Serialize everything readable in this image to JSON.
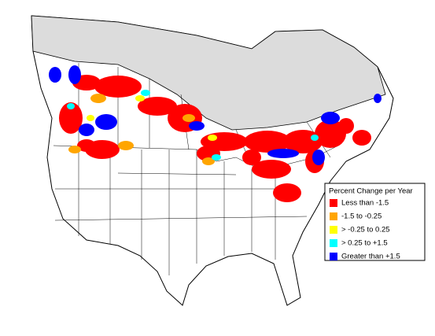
{
  "legend": {
    "title": "Percent Change per Year",
    "items": [
      {
        "label": "Less than -1.5",
        "color": "#ff0000"
      },
      {
        "label": "-1.5 to -0.25",
        "color": "#ffa500"
      },
      {
        "label": "> -0.25 to 0.25",
        "color": "#ffff00"
      },
      {
        "label": "> 0.25 to +1.5",
        "color": "#00ffff"
      },
      {
        "label": "Greater than +1.5",
        "color": "#0000ff"
      }
    ]
  }
}
